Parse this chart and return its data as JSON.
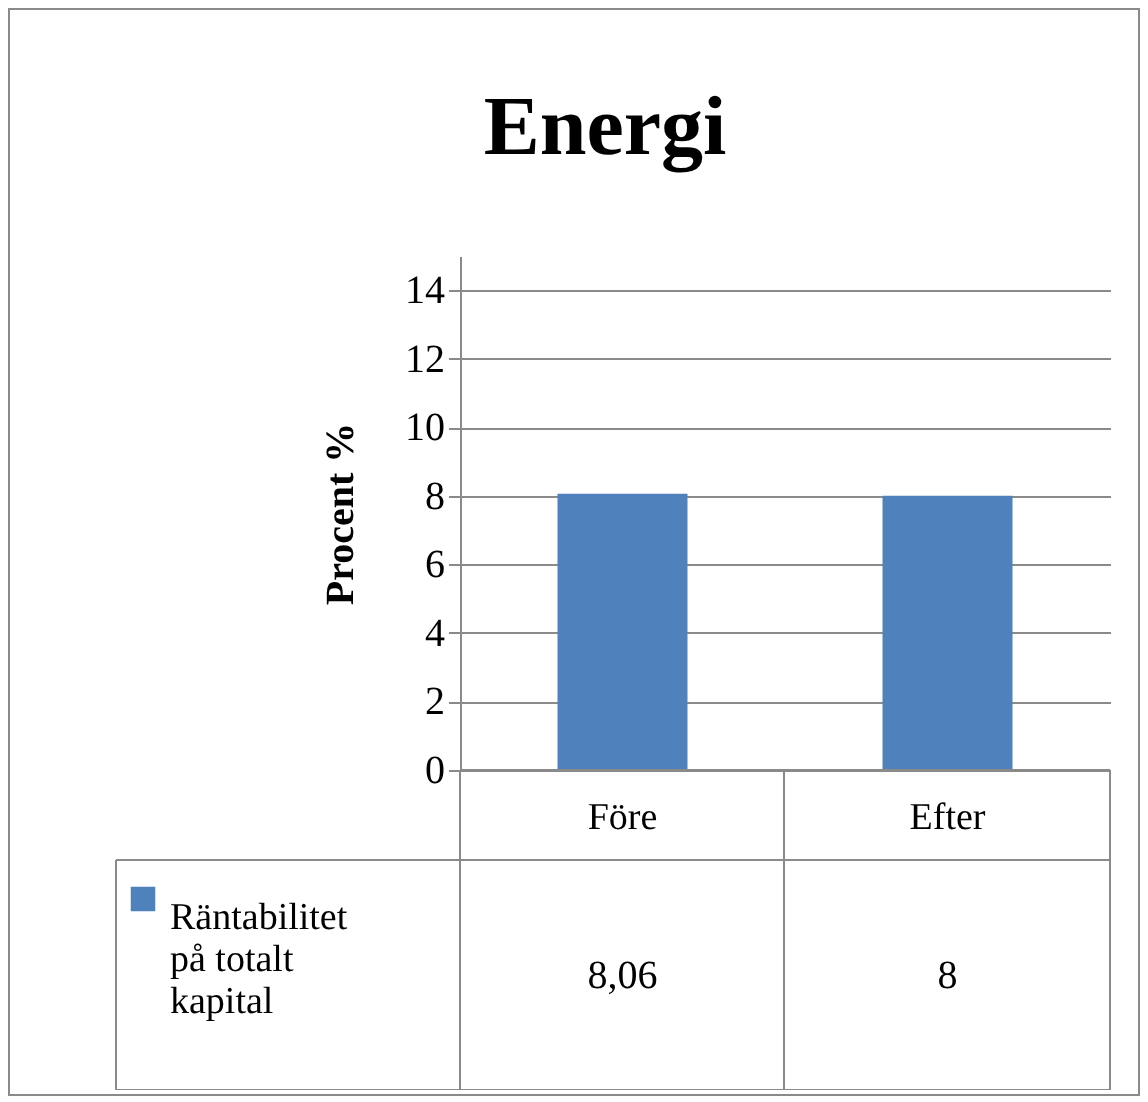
{
  "chart_data": {
    "type": "bar",
    "title": "Energi",
    "ylabel": "Procent %",
    "categories": [
      "Före",
      "Efter"
    ],
    "series": [
      {
        "name": "Räntabilitet på totalt kapital",
        "color": "#4f81bd",
        "values": [
          8.06,
          8
        ],
        "value_labels": [
          "8,06",
          "8"
        ]
      }
    ],
    "ylim": [
      0,
      15
    ],
    "yticks": [
      0,
      2,
      4,
      6,
      8,
      10,
      12,
      14
    ],
    "grid": "y",
    "legend": "bottom left"
  }
}
